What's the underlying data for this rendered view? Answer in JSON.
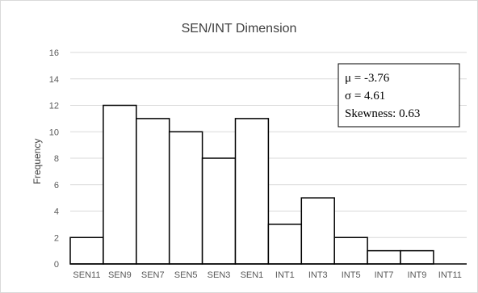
{
  "chart_data": {
    "type": "bar",
    "title": "SEN/INT Dimension",
    "xlabel": "",
    "ylabel": "Frequency",
    "ylim": [
      0,
      16
    ],
    "yticks": [
      0,
      2,
      4,
      6,
      8,
      10,
      12,
      14,
      16
    ],
    "grid": true,
    "categories": [
      "SEN11",
      "SEN9",
      "SEN7",
      "SEN5",
      "SEN3",
      "SEN1",
      "INT1",
      "INT3",
      "INT5",
      "INT7",
      "INT9",
      "INT11"
    ],
    "values": [
      2,
      12,
      11,
      10,
      8,
      11,
      3,
      5,
      2,
      1,
      1,
      0
    ],
    "bar_fill": "#ffffff",
    "bar_stroke": "#000000",
    "grid_color": "#d9d9d9",
    "annotation": {
      "lines": [
        "μ = -3.76",
        "σ = 4.61",
        "Skewness: 0.63"
      ]
    }
  }
}
